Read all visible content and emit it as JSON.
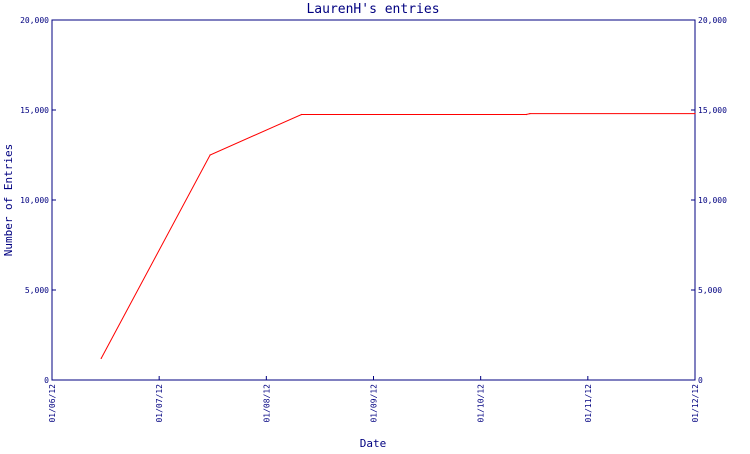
{
  "chart_data": {
    "type": "line",
    "title": "LaurenH's entries",
    "xlabel": "Date",
    "ylabel": "Number of Entries",
    "x_ticks": [
      "01/06/12",
      "01/07/12",
      "01/08/12",
      "01/09/12",
      "01/10/12",
      "01/11/12",
      "01/12/12"
    ],
    "y_ticks": [
      "0",
      "5,000",
      "10,000",
      "15,000",
      "20,000"
    ],
    "y_tick_values": [
      0,
      5000,
      10000,
      15000,
      20000
    ],
    "ylim": [
      0,
      20000
    ],
    "xlim": [
      "2012-06-01",
      "2012-12-01"
    ],
    "series": [
      {
        "x": [
          "2012-06-15",
          "2012-07-16",
          "2012-08-11",
          "2012-10-14",
          "2012-10-15",
          "2012-12-01"
        ],
        "values": [
          1200,
          12500,
          14750,
          14750,
          14800,
          14800
        ]
      }
    ],
    "colors": {
      "axis": "#000080",
      "text": "#000080",
      "line": "#ff0000"
    },
    "grid": false,
    "legend": "none",
    "right_axis_mirrors_left": true
  }
}
